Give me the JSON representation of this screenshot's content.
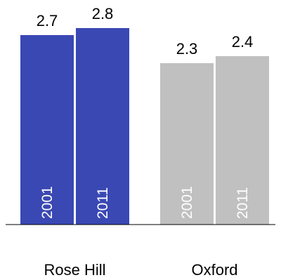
{
  "chart_data": {
    "type": "bar",
    "groups": [
      {
        "name": "Rose Hill",
        "color": "#3a48b4",
        "bars": [
          {
            "label": "2001",
            "value": 2.7,
            "value_label": "2.7"
          },
          {
            "label": "2011",
            "value": 2.8,
            "value_label": "2.8"
          }
        ]
      },
      {
        "name": "Oxford",
        "color": "#c0c0c0",
        "bars": [
          {
            "label": "2001",
            "value": 2.3,
            "value_label": "2.3"
          },
          {
            "label": "2011",
            "value": 2.4,
            "value_label": "2.4"
          }
        ]
      }
    ],
    "ylim": [
      0,
      3
    ],
    "grid": false,
    "legend": "none"
  }
}
